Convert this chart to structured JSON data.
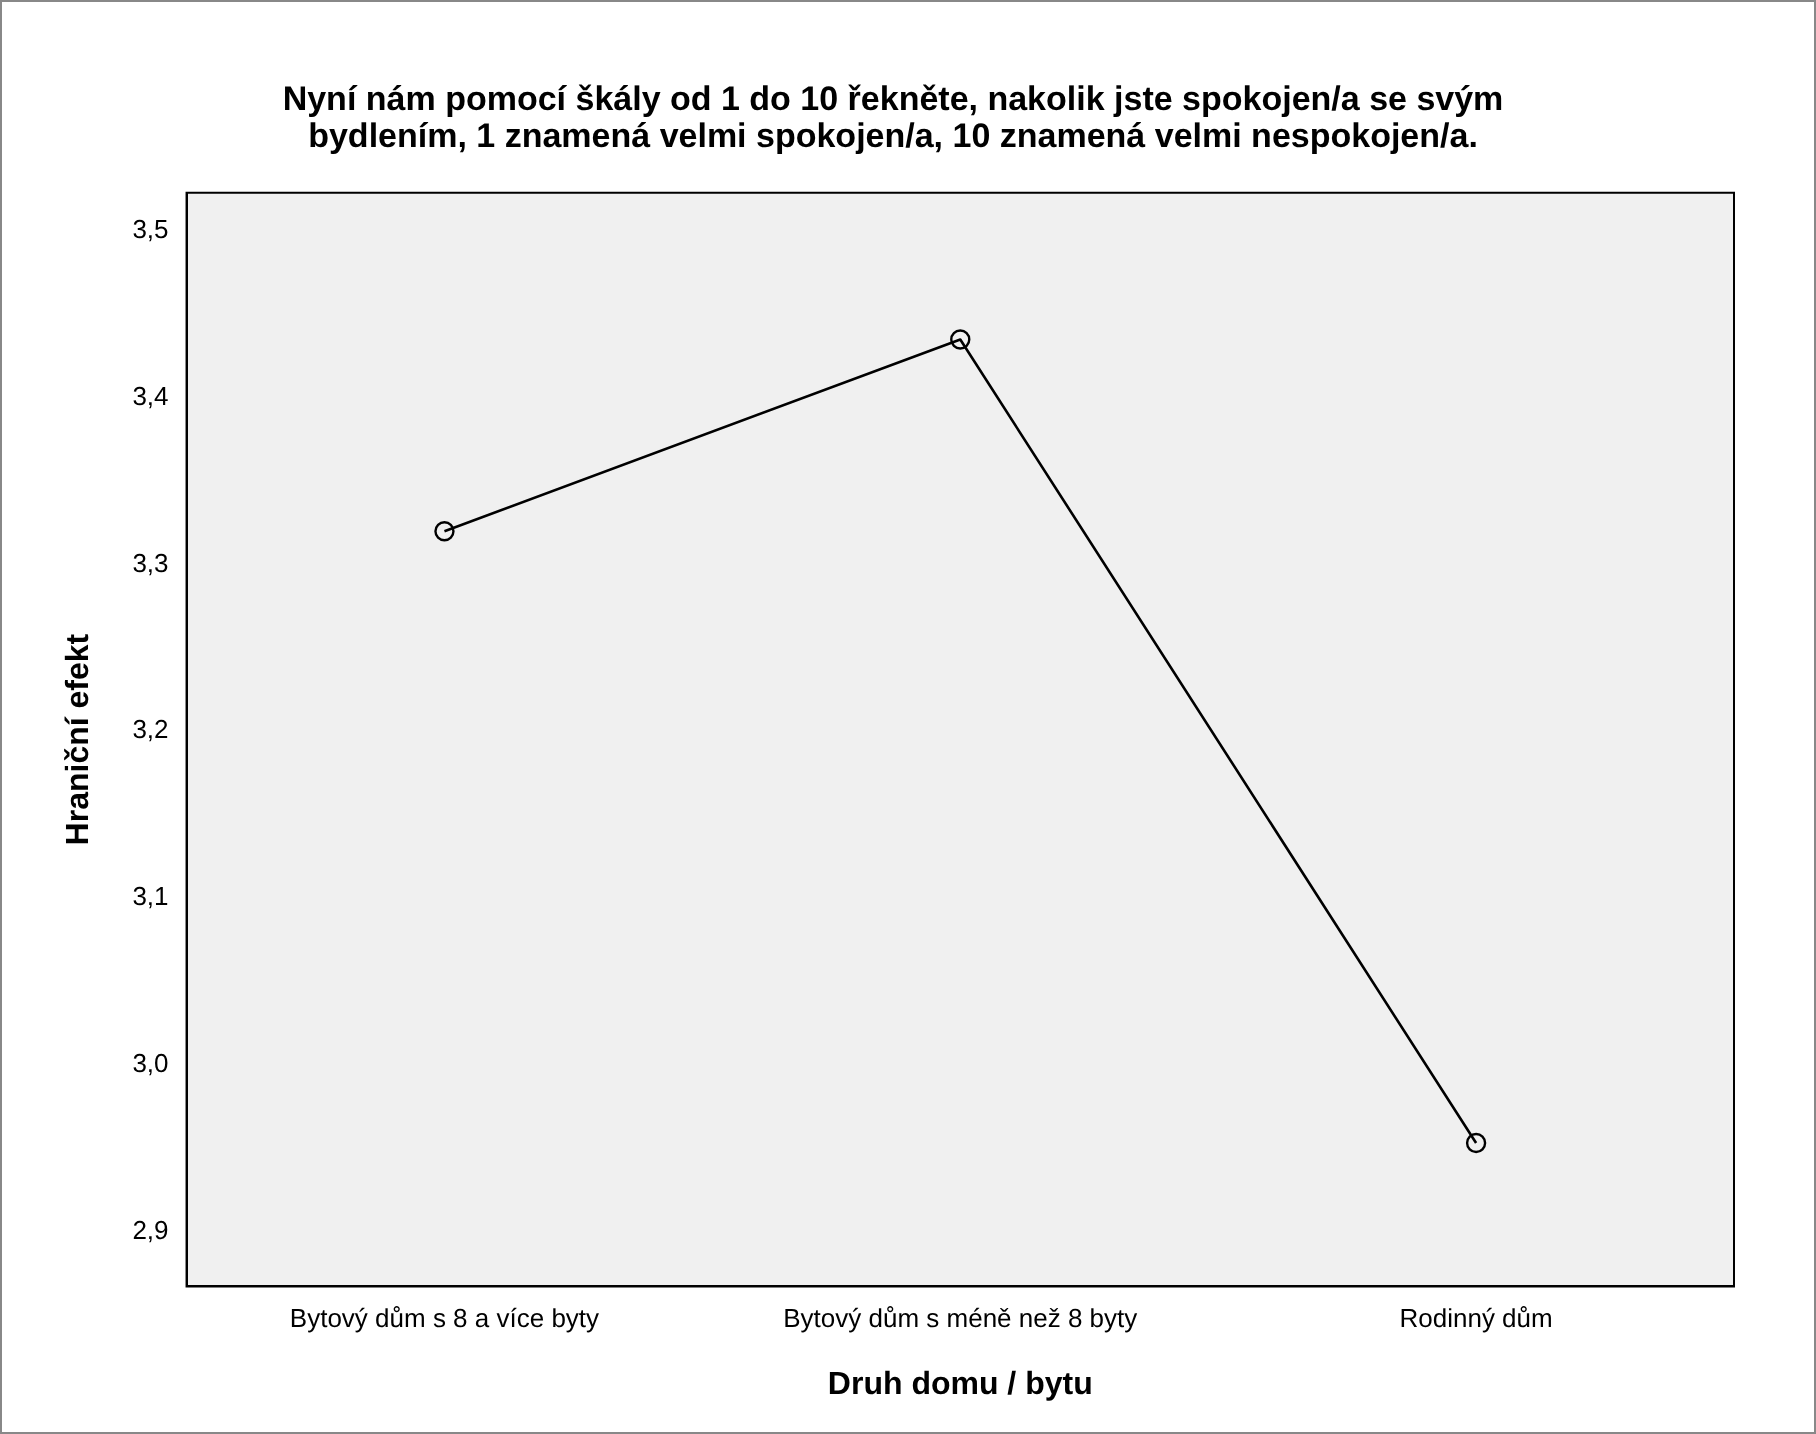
{
  "chart_data": {
    "type": "line",
    "title": "Nyní nám pomocí škály od 1 do 10 řekněte, nakolik jste spokojen/a se svým bydlením, 1 znamená velmi spokojen/a, 10 znamená velmi nespokojen/a.",
    "xlabel": "Druh domu / bytu",
    "ylabel": "Hraniční efekt",
    "categories": [
      "Bytový dům s 8 a více byty",
      "Bytový dům s méně než 8 byty",
      "Rodinný dům"
    ],
    "series": [
      {
        "color": "#000000",
        "values": [
          3.32,
          3.435,
          2.953
        ]
      }
    ],
    "ylim": [
      2.867,
      3.523
    ],
    "yticks": [
      {
        "value": 2.9,
        "label": "2,9"
      },
      {
        "value": 3.0,
        "label": "3,0"
      },
      {
        "value": 3.1,
        "label": "3,1"
      },
      {
        "value": 3.2,
        "label": "3,2"
      },
      {
        "value": 3.3,
        "label": "3,3"
      },
      {
        "value": 3.4,
        "label": "3,4"
      },
      {
        "value": 3.5,
        "label": "3,5"
      }
    ],
    "grid": false,
    "legend": false,
    "marker": "circle",
    "line_style": "solid"
  }
}
